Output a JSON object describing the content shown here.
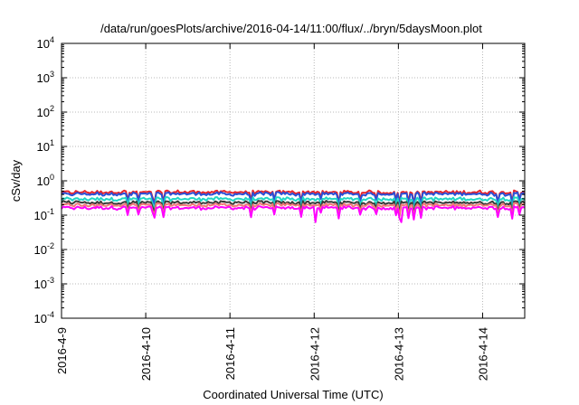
{
  "chart_data": {
    "type": "line",
    "title": "/data/run/goesPlots/archive/2016-04-14/11:00/flux/../bryn/5daysMoon.plot",
    "xlabel": "Coordinated Universal Time (UTC)",
    "ylabel": "cSv/day",
    "yscale": "log",
    "ylim": [
      0.0001,
      10000
    ],
    "y_ticks": [
      {
        "base": "10",
        "exp": "-4"
      },
      {
        "base": "10",
        "exp": "-3"
      },
      {
        "base": "10",
        "exp": "-2"
      },
      {
        "base": "10",
        "exp": "-1"
      },
      {
        "base": "10",
        "exp": "0"
      },
      {
        "base": "10",
        "exp": "1"
      },
      {
        "base": "10",
        "exp": "2"
      },
      {
        "base": "10",
        "exp": "3"
      },
      {
        "base": "10",
        "exp": "4"
      }
    ],
    "xlim": [
      "2016-04-09T00:00",
      "2016-04-14T12:00"
    ],
    "x_ticks": [
      "2016-4-9",
      "2016-4-10",
      "2016-4-11",
      "2016-4-12",
      "2016-4-13",
      "2016-4-14"
    ],
    "grid": true,
    "series": [
      {
        "color": "#e8242a",
        "level": 0.47
      },
      {
        "color": "#2a4fd6",
        "level": 0.42
      },
      {
        "color": "#22d6c4",
        "level": 0.3
      },
      {
        "color": "#3a3a3a",
        "level": 0.235
      },
      {
        "color": "#f07878",
        "level": 0.2
      },
      {
        "color": "#ff00ff",
        "level": 0.165
      }
    ]
  }
}
